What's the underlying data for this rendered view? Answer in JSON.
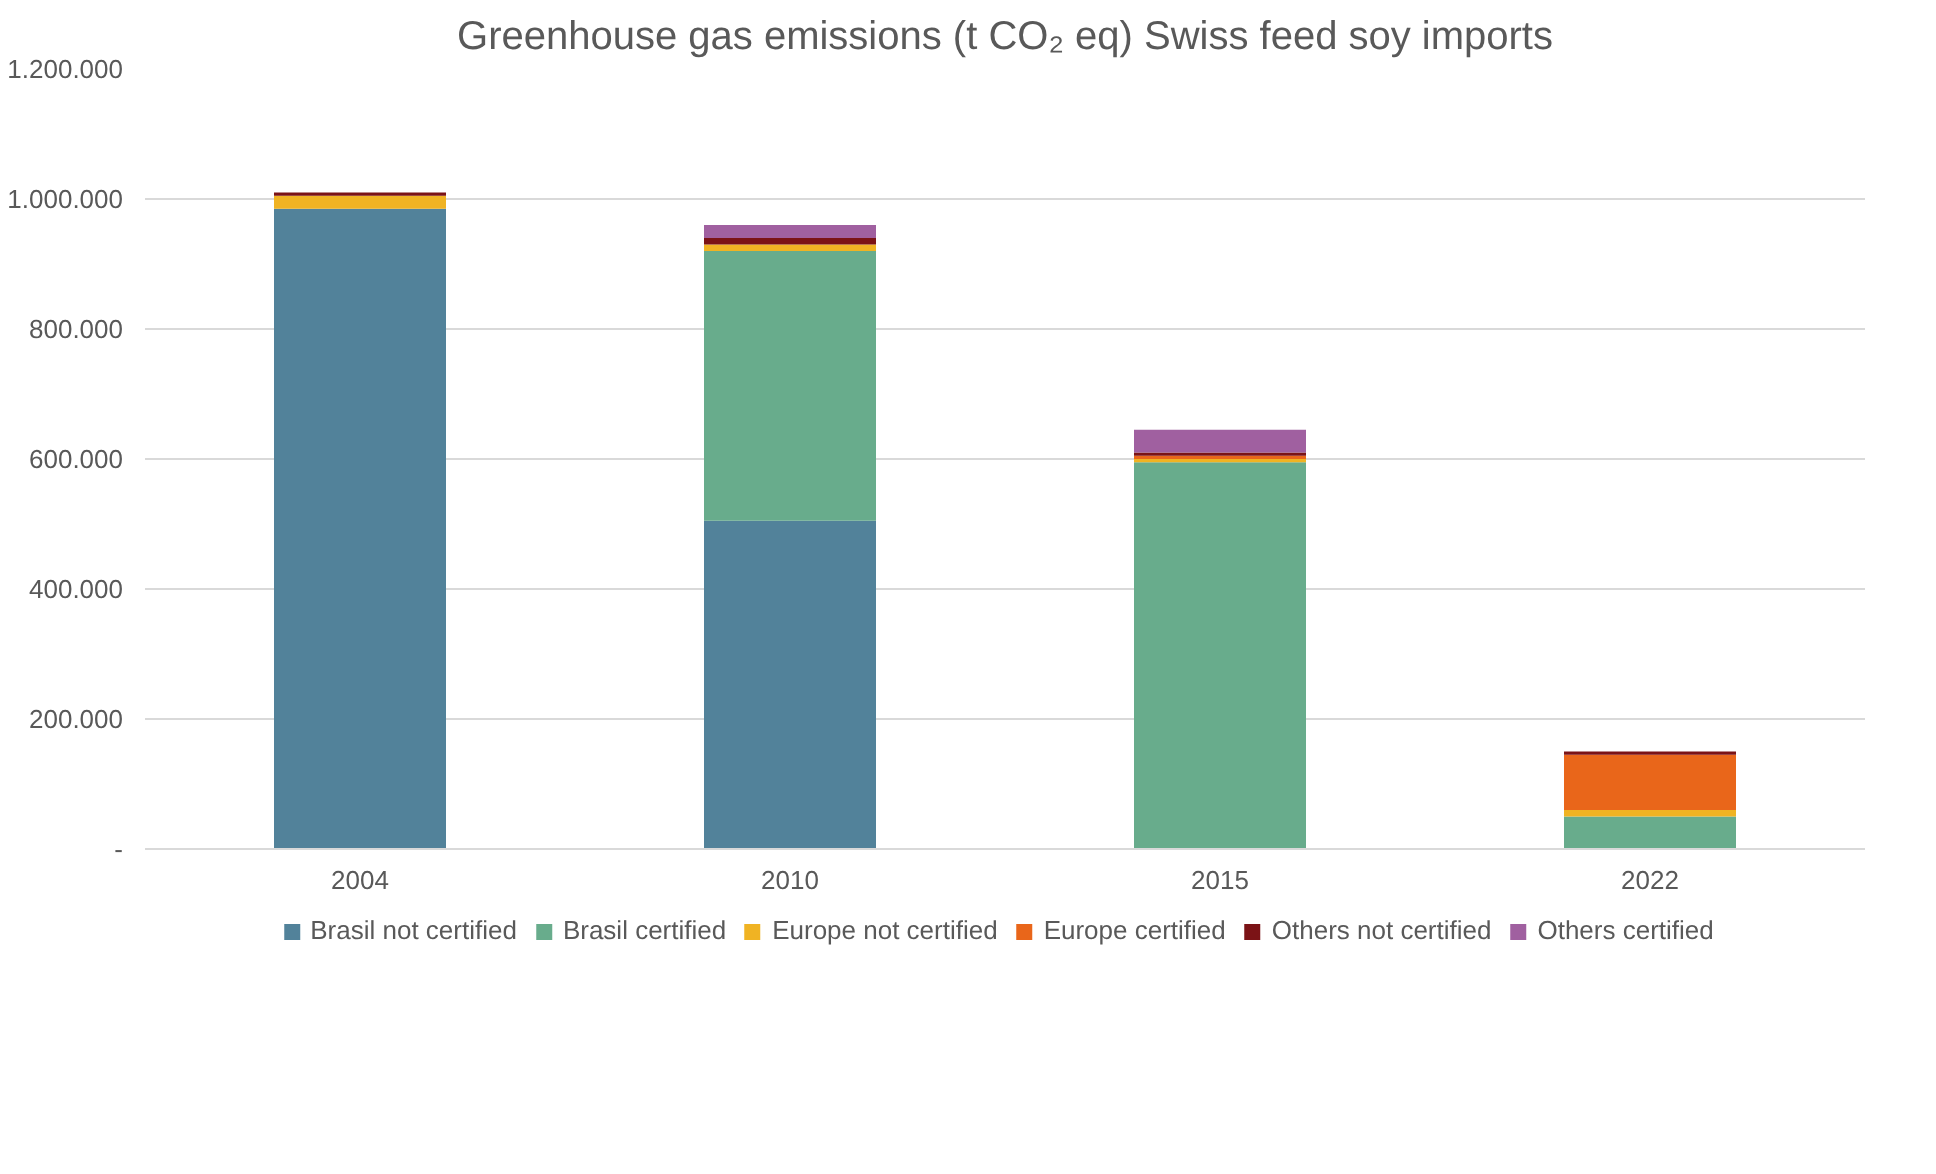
{
  "chart_data": {
    "type": "bar",
    "stacked": true,
    "title": "Greenhouse gas emissions (t CO₂ eq) Swiss feed soy imports",
    "categories": [
      "2004",
      "2010",
      "2015",
      "2022"
    ],
    "series": [
      {
        "name": "Brasil not certified",
        "color": "#52829a",
        "values": [
          985000,
          505000,
          0,
          0
        ]
      },
      {
        "name": "Brasil certified",
        "color": "#68ac8c",
        "values": [
          0,
          415000,
          595000,
          50000
        ]
      },
      {
        "name": "Europe not certified",
        "color": "#f0b323",
        "values": [
          20000,
          10000,
          5000,
          10000
        ]
      },
      {
        "name": "Europe certified",
        "color": "#e9661a",
        "values": [
          0,
          0,
          5000,
          85000
        ]
      },
      {
        "name": "Others not certified",
        "color": "#7b1316",
        "values": [
          5000,
          10000,
          5000,
          5000
        ]
      },
      {
        "name": "Others certified",
        "color": "#a060a0",
        "values": [
          0,
          20000,
          35000,
          0
        ]
      }
    ],
    "ylim": [
      0,
      1200000
    ],
    "yticks": [
      {
        "value": 0,
        "label": "-"
      },
      {
        "value": 200000,
        "label": "200.000"
      },
      {
        "value": 400000,
        "label": "400.000"
      },
      {
        "value": 600000,
        "label": "600.000"
      },
      {
        "value": 800000,
        "label": "800.000"
      },
      {
        "value": 1000000,
        "label": "1.000.000"
      },
      {
        "value": 1200000,
        "label": "1.200.000"
      }
    ],
    "grid": "y",
    "legend": "bottom"
  }
}
